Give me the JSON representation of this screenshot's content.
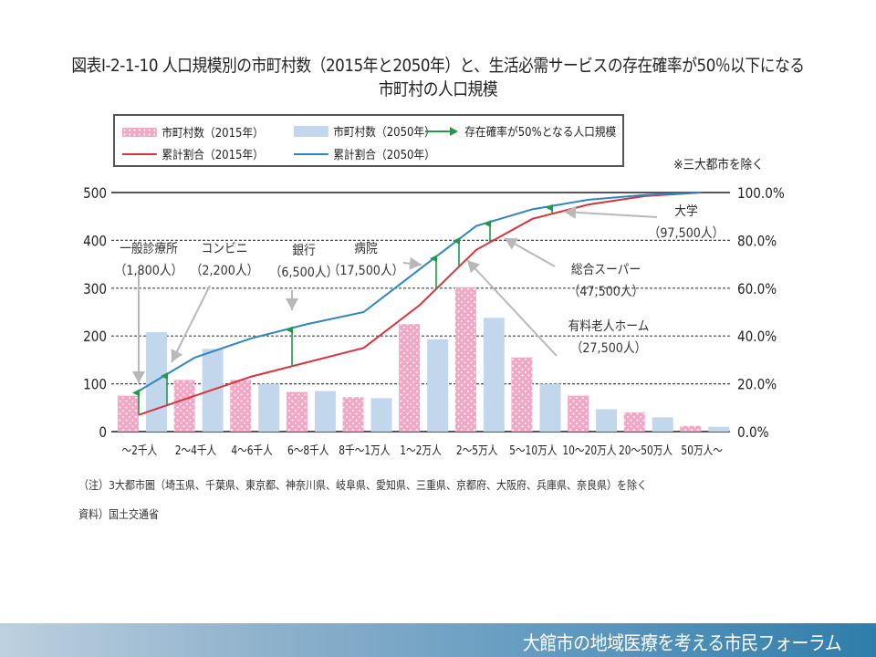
{
  "title_line1": "図表Ⅰ-2-1-10 人口規模別の市町村数（2015年と2050年）と、生活必需サービスの存在確率が50％以下になる",
  "title_line2": "市町村の人口規模",
  "legend": {
    "bars_2015": "市町村数（2015年）",
    "bars_2050": "市町村数（2050年）",
    "arrow": "存在確率が50%となる人口規模",
    "line_2015": "累計割合（2015年）",
    "line_2050": "累計割合（2050年）"
  },
  "note_top": "※三大都市を除く",
  "footnote_1": "（注）3大都市圏（埼玉県、千葉県、東京都、神奈川県、岐阜県、愛知県、三重県、京都府、大阪府、兵庫県、奈良県）を除く",
  "footnote_2": "資料）国土交通省",
  "banner_text": "大館市の地域医療を考える市民フォーラム",
  "colors": {
    "bar_2015": "#f2a7c4",
    "bar_2050": "#c2d6ec",
    "line_2015": "#d9333d",
    "line_2050": "#2e86c1",
    "arrow": "#1f9a46",
    "pointer": "#b8b8b8"
  },
  "chart_data": {
    "type": "bar",
    "title": "人口規模別の市町村数（2015年と2050年）と、生活必需サービスの存在確率が50％以下になる市町村の人口規模",
    "categories": [
      "～2千人",
      "2～4千人",
      "4～6千人",
      "6～8千人",
      "8千～1万人",
      "1～2万人",
      "2～5万人",
      "5～10万人",
      "10～20万人",
      "20～50万人",
      "50万人～"
    ],
    "ylim": [
      0,
      500
    ],
    "yticks": [
      "0",
      "100",
      "200",
      "300",
      "400",
      "500"
    ],
    "y2lim": [
      0,
      100
    ],
    "y2ticks": [
      "0.0%",
      "20.0%",
      "40.0%",
      "60.0%",
      "80.0%",
      "100.0%"
    ],
    "grid": true,
    "legend_position": "top",
    "series": [
      {
        "name": "市町村数（2015年）",
        "kind": "bar",
        "values": [
          75,
          108,
          108,
          83,
          72,
          225,
          302,
          155,
          75,
          40,
          12
        ]
      },
      {
        "name": "市町村数（2050年）",
        "kind": "bar",
        "values": [
          208,
          173,
          100,
          85,
          70,
          193,
          238,
          100,
          47,
          30,
          10
        ]
      },
      {
        "name": "累計割合（2015年）",
        "kind": "line",
        "axis": "right",
        "values": [
          7,
          15,
          23,
          29,
          35,
          53,
          76,
          89,
          95,
          98.5,
          100
        ]
      },
      {
        "name": "累計割合（2050年）",
        "kind": "line",
        "axis": "right",
        "values": [
          17,
          31,
          39,
          45,
          50,
          68,
          86,
          93,
          97,
          99,
          100
        ]
      }
    ],
    "annotations": [
      {
        "service": "一般診療所",
        "population": "（1,800人）"
      },
      {
        "service": "コンビニ",
        "population": "（2,200人）"
      },
      {
        "service": "銀行",
        "population": "（6,500人）"
      },
      {
        "service": "病院",
        "population": "（17,500人）"
      },
      {
        "service": "有料老人ホーム",
        "population": "（27,500人）"
      },
      {
        "service": "総合スーパー",
        "population": "（47,500人）"
      },
      {
        "service": "大学",
        "population": "（97,500人）"
      }
    ]
  }
}
